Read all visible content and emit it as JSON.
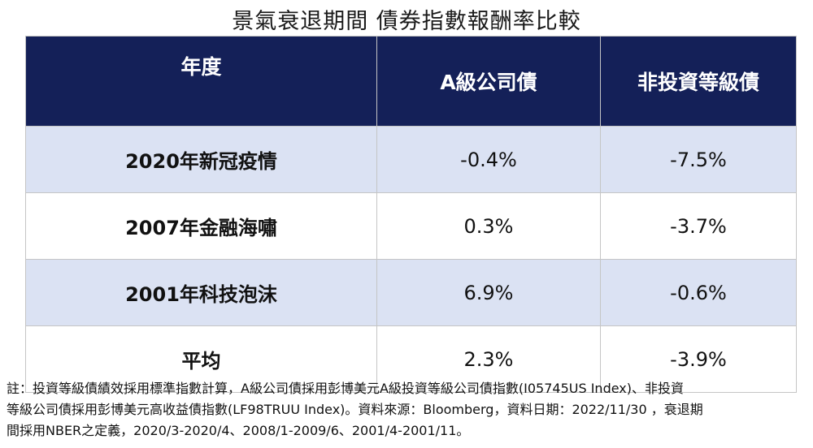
{
  "title": "景氣衰退期間 債券指數報酬率比較",
  "table": {
    "headers": [
      "年度",
      "A級公司債",
      "非投資等級債"
    ],
    "rows": [
      {
        "label": "2020年新冠疫情",
        "a_grade": "-0.4%",
        "high_yield": "-7.5%"
      },
      {
        "label": "2007年金融海嘯",
        "a_grade": "0.3%",
        "high_yield": "-3.7%"
      },
      {
        "label": "2001年科技泡沫",
        "a_grade": "6.9%",
        "high_yield": "-0.6%"
      },
      {
        "label": "平均",
        "a_grade": "2.3%",
        "high_yield": "-3.9%"
      }
    ]
  },
  "colors": {
    "header_bg": "#142058",
    "header_text": "#ffffff",
    "shaded_row": "#dbe2f3"
  },
  "footnote": {
    "line1": "註：投資等級債績效採用標準指數計算，A級公司債採用彭博美元A級投資等級公司債指數(I05745US Index)、非投資",
    "line2": "等級公司債採用彭博美元高收益債指數(LF98TRUU Index)。資料來源：Bloomberg，資料日期：2022/11/30 ，衰退期",
    "line3": "間採用NBER之定義，2020/3-2020/4、2008/1-2009/6、2001/4-2001/11。"
  }
}
